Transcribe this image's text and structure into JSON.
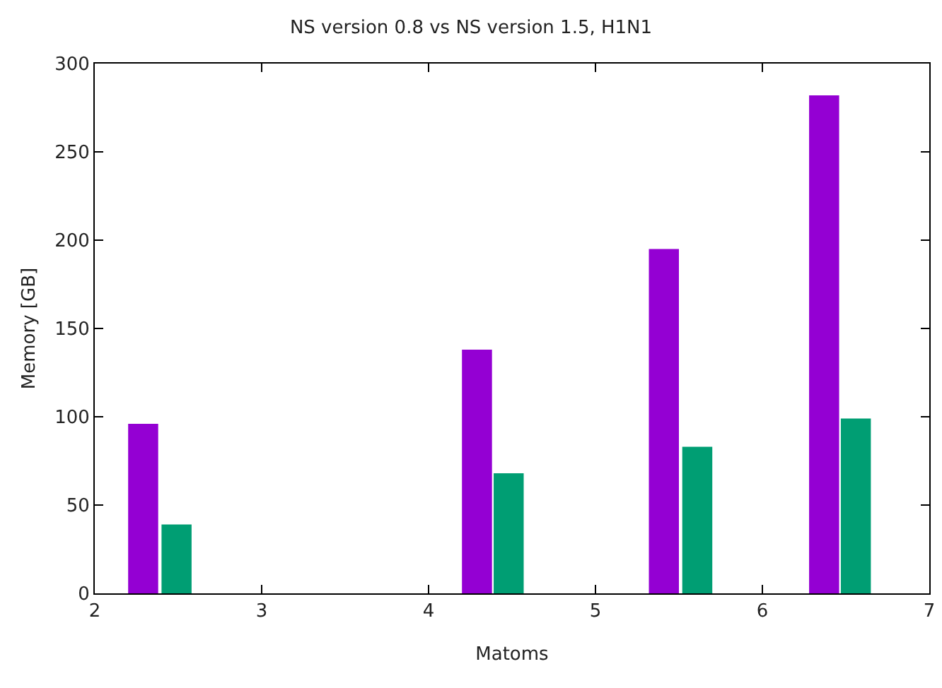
{
  "chart_data": {
    "type": "bar",
    "title": "NS version 0.8 vs NS version 1.5, H1N1",
    "xlabel": "Matoms",
    "ylabel": "Memory [GB]",
    "series": [
      {
        "color": "#9400d3",
        "x": [
          2.29,
          4.29,
          5.41,
          6.37
        ],
        "values": [
          96,
          138,
          195,
          282
        ]
      },
      {
        "color": "#009e73",
        "x": [
          2.49,
          4.48,
          5.61,
          6.56
        ],
        "values": [
          39,
          68,
          83,
          99
        ]
      }
    ],
    "xlim": [
      2,
      7
    ],
    "xticks": [
      2,
      3,
      4,
      5,
      6,
      7
    ],
    "ylim": [
      0,
      300
    ],
    "yticks": [
      0,
      50,
      100,
      150,
      200,
      250,
      300
    ],
    "grid": false
  }
}
